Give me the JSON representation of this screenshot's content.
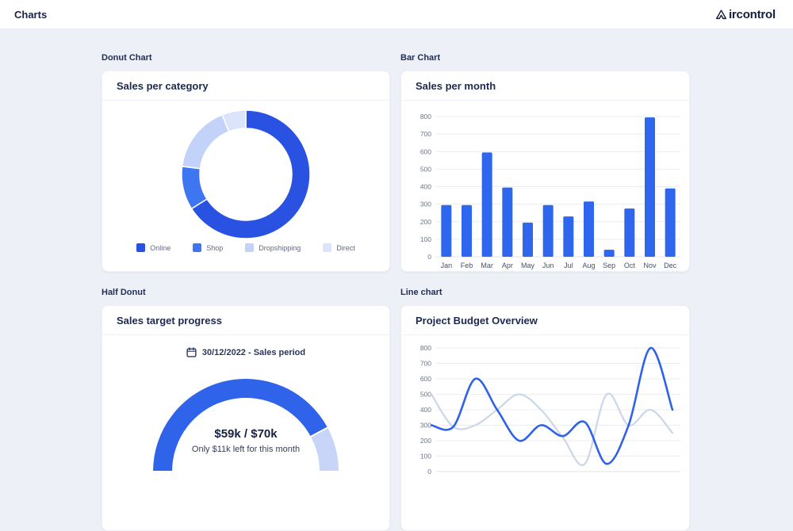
{
  "header": {
    "title": "Charts",
    "brand": "Aircontrol"
  },
  "colors": {
    "primary_blue": "#2e63ea",
    "bar_blue": "#2e66ee",
    "grid_line": "#e9ecf1",
    "card_border": "#eceff5",
    "page_bg": "#edf0f6"
  },
  "sections": {
    "donut": {
      "label": "Donut Chart",
      "card_title": "Sales per category"
    },
    "bar": {
      "label": "Bar Chart",
      "card_title": "Sales per month"
    },
    "half_donut": {
      "label": "Half Donut",
      "card_title": "Sales target progress"
    },
    "line": {
      "label": "Line chart",
      "card_title": "Project Budget Overview"
    }
  },
  "chart_data": [
    {
      "id": "donut",
      "type": "pie",
      "title": "Sales per category",
      "labels": [
        "Online",
        "Shop",
        "Dropshipping",
        "Direct"
      ],
      "values": [
        66,
        11,
        17,
        6
      ],
      "unit": "percent",
      "colors": [
        "#2a52e2",
        "#3e76f2",
        "#c3d2f8",
        "#dbe4fb"
      ],
      "legend_position": "bottom",
      "donut_hole": true
    },
    {
      "id": "bar",
      "type": "bar",
      "title": "Sales per month",
      "categories": [
        "Jan",
        "Feb",
        "Mar",
        "Apr",
        "May",
        "Jun",
        "Jul",
        "Aug",
        "Sep",
        "Oct",
        "Nov",
        "Dec"
      ],
      "values": [
        295,
        295,
        595,
        395,
        195,
        295,
        230,
        315,
        40,
        275,
        795,
        390
      ],
      "xlabel": "",
      "ylabel": "",
      "ylim": [
        0,
        800
      ],
      "ytick_step": 100,
      "color": "#2e66ee",
      "grid": true,
      "legend": false
    },
    {
      "id": "gauge",
      "type": "half-donut",
      "title": "Sales target progress",
      "date_label": "30/12/2022 - Sales period",
      "value": 59,
      "max": 70,
      "value_label": "$59k / $70k",
      "subtitle": "Only $11k left for this month",
      "color_filled": "#2e63ea",
      "color_rest": "#c8d5f8"
    },
    {
      "id": "line",
      "type": "line",
      "title": "Project Budget Overview",
      "x": [
        1,
        2,
        3,
        4,
        5,
        6,
        7,
        8,
        9,
        10,
        11,
        12
      ],
      "series": [
        {
          "name": "series-light",
          "color": "#ccd6e9",
          "values": [
            500,
            290,
            300,
            400,
            500,
            400,
            220,
            50,
            500,
            300,
            400,
            250
          ]
        },
        {
          "name": "series-blue",
          "color": "#2e62e8",
          "values": [
            300,
            290,
            600,
            400,
            200,
            300,
            230,
            320,
            50,
            300,
            800,
            400
          ]
        }
      ],
      "ylim": [
        0,
        800
      ],
      "ytick_step": 100,
      "grid": true,
      "legend": false,
      "smooth": true
    }
  ]
}
